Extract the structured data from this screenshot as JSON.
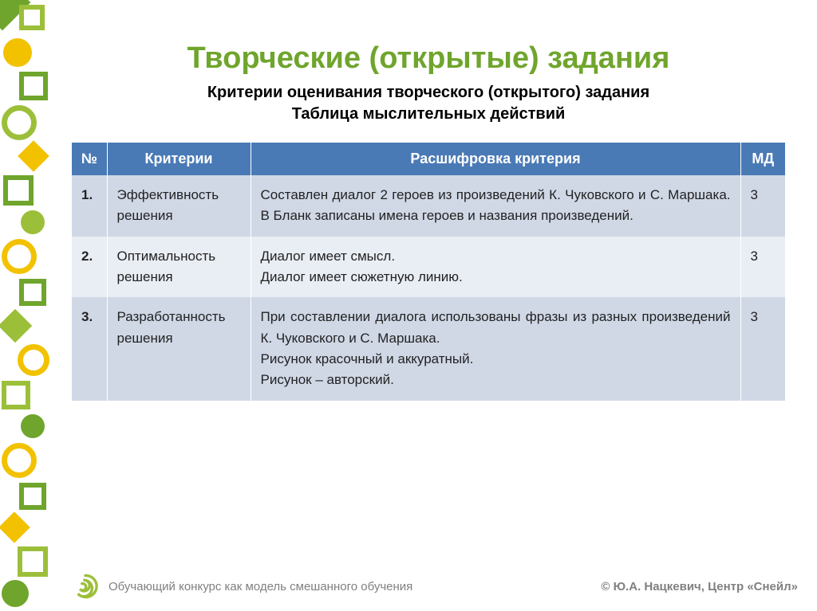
{
  "colors": {
    "accent_green": "#6fa52c",
    "accent_yellow": "#f2c200",
    "header_blue": "#4a7ab5",
    "row_a": "#d0d8e6",
    "row_b": "#e9edf4",
    "text": "#222222",
    "muted": "#808080",
    "white": "#ffffff"
  },
  "title": "Творческие (открытые) задания",
  "subtitle_line1": "Критерии оценивания творческого (открытого) задания",
  "subtitle_line2": "Таблица мыслительных действий",
  "table": {
    "headers": {
      "num": "№",
      "criteria": "Критерии",
      "desc": "Расшифровка критерия",
      "md": "МД"
    },
    "rows": [
      {
        "num": "1.",
        "criteria": "Эффективность решения",
        "desc": "Составлен диалог 2 героев из произведений К. Чуковского и С. Маршака. В Бланк записаны имена героев и названия произведений.",
        "md": "3"
      },
      {
        "num": "2.",
        "criteria": "Оптимальность решения",
        "desc": "Диалог имеет смысл.\nДиалог имеет сюжетную линию.",
        "md": "3"
      },
      {
        "num": "3.",
        "criteria": "Разработанность решения",
        "desc": "При составлении диалога использованы фразы из разных произведений К. Чуковского и С. Маршака.\nРисунок красочный и аккуратный.\nРисунок – авторский.",
        "md": "3"
      }
    ]
  },
  "footer": {
    "left": "Обучающий конкурс как модель смешанного обучения",
    "right": "© Ю.А. Нацкевич, Центр «Снейл»"
  }
}
